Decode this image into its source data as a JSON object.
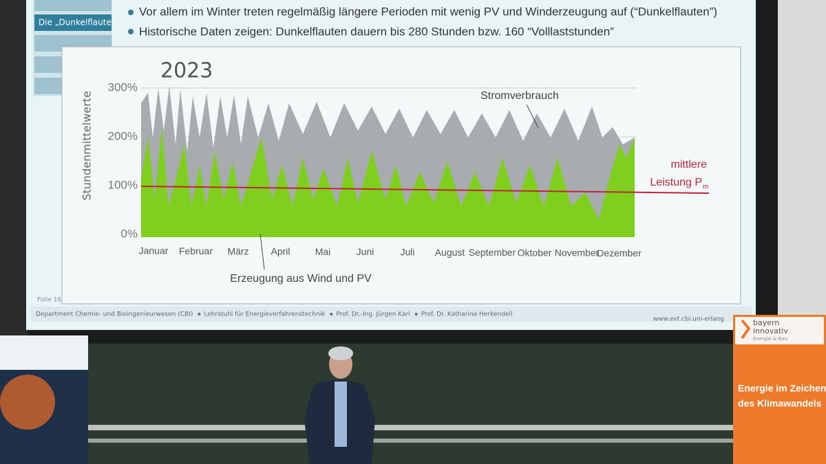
{
  "slide": {
    "nav": [
      "Die „Dunkelflaute“"
    ],
    "bullets": [
      "Vor allem im Winter treten regelmäßig längere Perioden mit wenig PV und Winderzeugung auf (“Dunkelflauten”)",
      "Historische Daten zeigen: Dunkelflauten dauern bis 280 Stunden bzw. 160 “Volllaststunden”"
    ],
    "folio": "Folie 16",
    "footer": [
      "Department Chemie- und Bioingenieurwesen (CBI)",
      "Lehrstuhl für Energieverfahrenstechnik",
      "Prof. Dr.-Ing. Jürgen Karl",
      "Prof. Dr. Katharina Herkendell"
    ],
    "url": "www.evt.cbi.uni-erlang"
  },
  "chart_data": {
    "type": "area",
    "title": "2023",
    "ylabel": "Stundenmittelwerte",
    "categories": [
      "Januar",
      "Februar",
      "März",
      "April",
      "Mai",
      "Juni",
      "Juli",
      "August",
      "September",
      "Oktober",
      "November",
      "Dezember"
    ],
    "ylim": [
      0,
      300
    ],
    "yticks": [
      {
        "value": 0,
        "label": "0%"
      },
      {
        "value": 100,
        "label": "100%"
      },
      {
        "value": 200,
        "label": "200%"
      },
      {
        "value": 300,
        "label": "300%"
      }
    ],
    "annotations": [
      "Stromverbrauch",
      "Erzeugung aus Wind und PV"
    ],
    "reference_label": [
      "mittlere",
      "Leistung P"
    ],
    "reference_subscript": "m"
  },
  "banner": {
    "brand": [
      "bayern",
      "innovativ"
    ],
    "sub": "Energie & Bau",
    "headline": [
      "Energie im Zeichen",
      "des Klimawandels"
    ]
  }
}
